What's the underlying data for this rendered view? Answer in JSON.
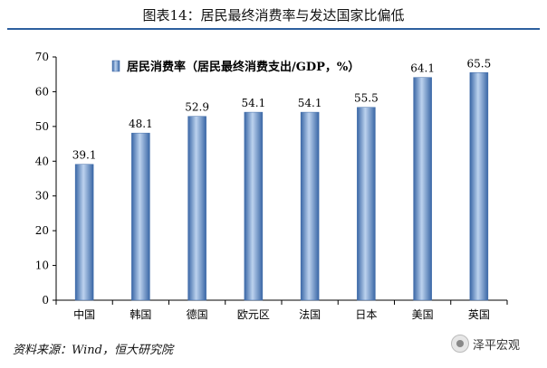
{
  "header": {
    "title": "图表14：居民最终消费率与发达国家比偏低"
  },
  "footer": {
    "source": "资料来源：Wind，恒大研究院",
    "watermark": "泽平宏观"
  },
  "colors": {
    "bar": "#4f81bd",
    "title_rule": "#2c5f9e"
  },
  "chart_data": {
    "type": "bar",
    "categories": [
      "中国",
      "韩国",
      "德国",
      "欧元区",
      "法国",
      "日本",
      "美国",
      "英国"
    ],
    "series": [
      {
        "name": "居民消费率（居民最终消费支出/GDP，%）",
        "values": [
          39.1,
          48.1,
          52.9,
          54.1,
          54.1,
          55.5,
          64.1,
          65.5
        ]
      }
    ],
    "ylim": [
      0,
      70
    ],
    "yticks": [
      0,
      10,
      20,
      30,
      40,
      50,
      60,
      70
    ],
    "legend": "top-left",
    "grid": false
  }
}
